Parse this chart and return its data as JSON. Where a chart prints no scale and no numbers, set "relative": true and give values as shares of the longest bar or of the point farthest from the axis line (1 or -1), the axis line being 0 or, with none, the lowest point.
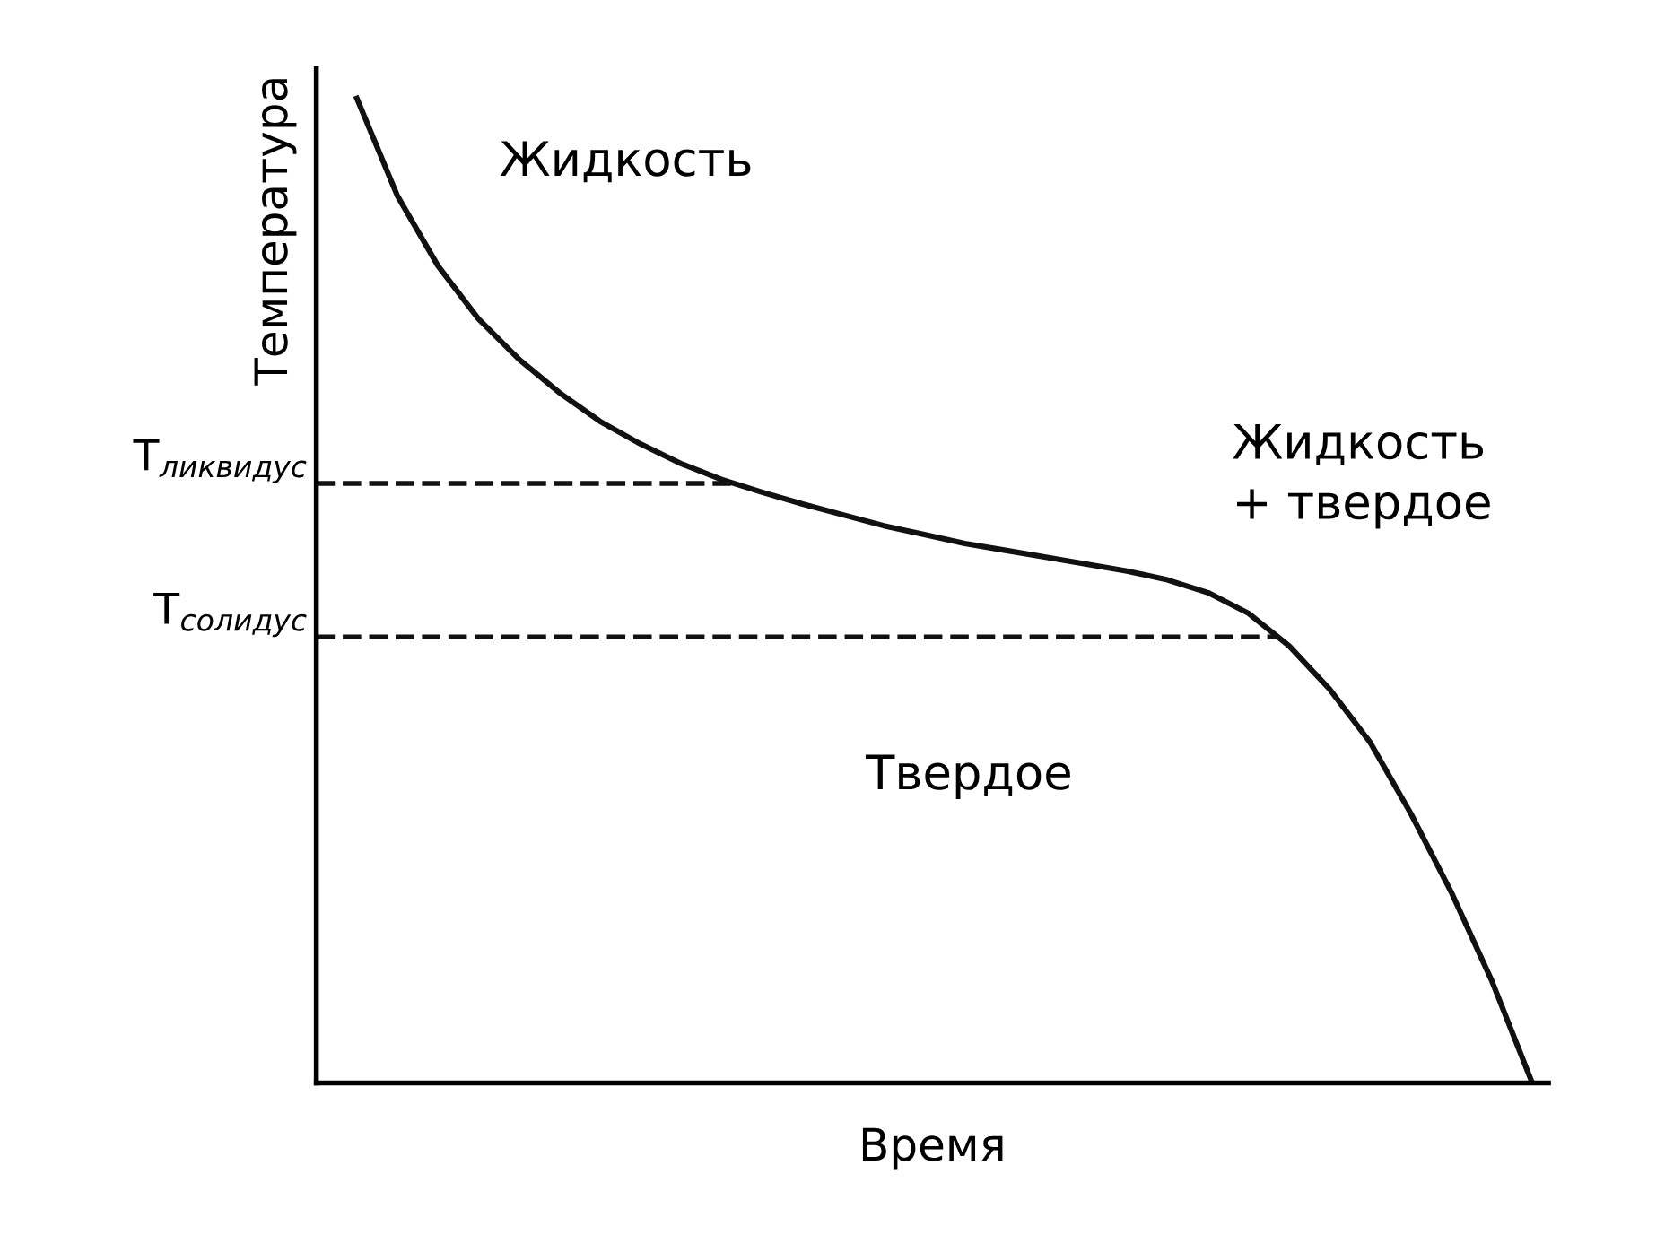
{
  "chart_data": {
    "type": "line",
    "relative": true,
    "xlabel": "Время",
    "ylabel": "Температура",
    "categories": [
      null,
      null,
      null,
      null,
      null,
      null,
      null,
      null,
      null,
      null,
      null,
      null,
      null,
      null,
      null,
      null,
      null,
      null,
      null,
      null,
      null,
      null,
      null,
      null,
      null,
      null,
      null,
      null,
      null,
      null
    ],
    "series": [
      {
        "color": "#111111",
        "values": [
          1.0,
          0.901,
          0.83,
          0.776,
          0.735,
          0.701,
          0.672,
          0.649,
          0.629,
          0.613,
          0.6,
          0.588,
          0.577,
          0.566,
          0.557,
          0.548,
          0.541,
          0.534,
          0.527,
          0.52,
          0.511,
          0.498,
          0.477,
          0.444,
          0.4,
          0.346,
          0.274,
          0.194,
          0.104,
          0.0
        ]
      }
    ],
    "ref_lines": [
      {
        "axis": "y",
        "value": 0.609,
        "label": "T$_{ликвидус}$",
        "color": "#111111",
        "line_style": "dashed"
      },
      {
        "axis": "y",
        "value": 0.453,
        "label": "T$_{солидус}$",
        "color": "#111111",
        "line_style": "dashed"
      }
    ],
    "annotations": [
      "Жидкость",
      "Жидкость\n+ твердое",
      "Твердое"
    ],
    "grid": false,
    "legend": false,
    "marker": "none",
    "line_style": "solid"
  }
}
